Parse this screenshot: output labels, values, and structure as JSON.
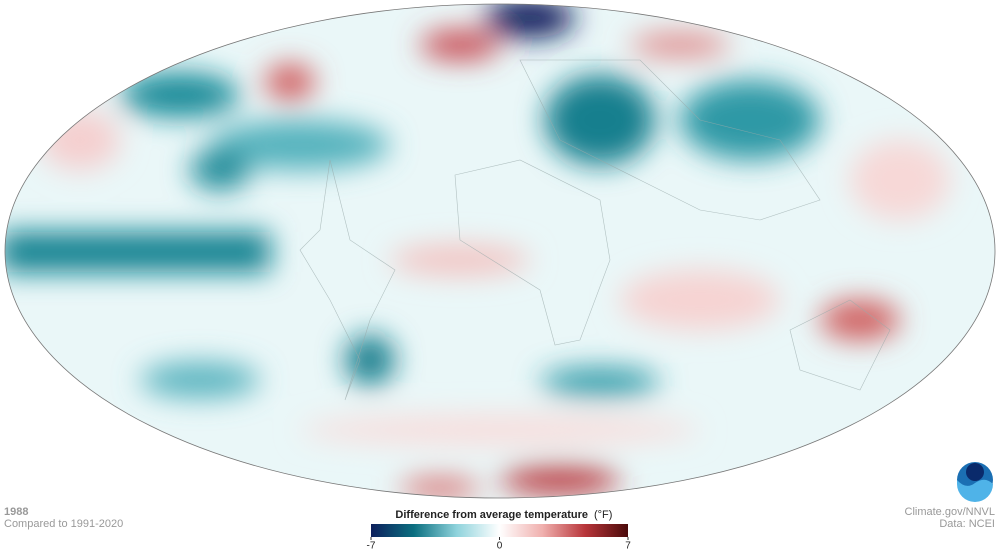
{
  "header": {
    "year": "1988",
    "baseline": "Compared to 1991-2020"
  },
  "legend": {
    "title": "Difference from average temperature",
    "unit": "(°F)",
    "range": [
      -7,
      7
    ],
    "ticks": [
      -7,
      0,
      7
    ],
    "colors": [
      "#0d1f5c",
      "#0b6f80",
      "#8fd3dc",
      "#ffffff",
      "#f0b0ae",
      "#b8353a",
      "#4a0a0a"
    ]
  },
  "credits": {
    "source": "Climate.gov/NNVL",
    "data": "Data: NCEI"
  }
}
